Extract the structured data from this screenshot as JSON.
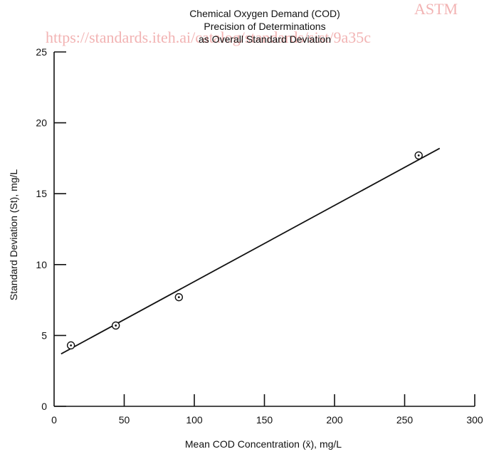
{
  "watermark": {
    "mark": "ASTM",
    "url": "https://standards.iteh.ai/catalog/standards/sist/9a35c"
  },
  "chart_data": {
    "type": "scatter",
    "title_lines": [
      "Chemical Oxygen Demand (COD)",
      "Precision of Determinations",
      "as Overall Standard Deviation"
    ],
    "xlabel": "Mean COD Concentration (x̄), mg/L",
    "ylabel": "Standard Deviation (St), mg/L",
    "xlim": [
      0,
      300
    ],
    "ylim": [
      0,
      25
    ],
    "x_ticks": [
      0,
      50,
      100,
      150,
      200,
      250,
      300
    ],
    "y_ticks": [
      0,
      5,
      10,
      15,
      20,
      25
    ],
    "grid": false,
    "series": [
      {
        "marker": "circle-dot",
        "points": [
          {
            "x": 12,
            "y": 4.3
          },
          {
            "x": 44,
            "y": 5.7
          },
          {
            "x": 89,
            "y": 7.7
          },
          {
            "x": 260,
            "y": 17.7
          }
        ]
      }
    ],
    "fit_line": {
      "x": [
        5,
        275
      ],
      "y": [
        3.7,
        18.2
      ]
    }
  }
}
